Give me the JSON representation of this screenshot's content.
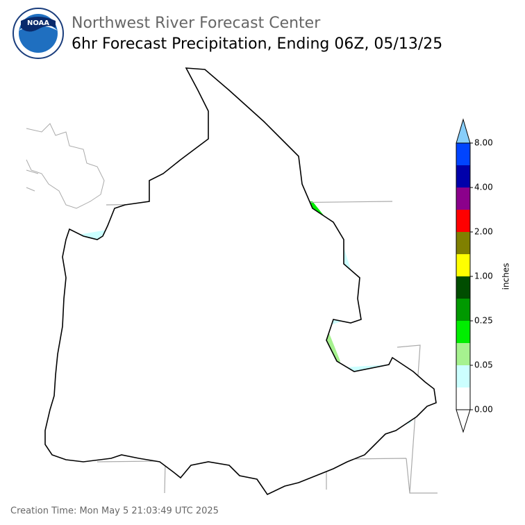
{
  "logo": {
    "text": "NOAA"
  },
  "header": {
    "title": "Northwest River Forecast Center",
    "subtitle": "6hr Forecast Precipitation, Ending 06Z, 05/13/25"
  },
  "legend": {
    "label": "inches",
    "ticks": [
      "0.00",
      "0.05",
      "0.25",
      "1.00",
      "2.00",
      "4.00",
      "8.00"
    ],
    "colors": [
      "#ffffff",
      "#ccffff",
      "#a6f28f",
      "#00ee00",
      "#009900",
      "#004d00",
      "#ffff00",
      "#808000",
      "#ff0000",
      "#8b008b",
      "#0000aa",
      "#0044ff"
    ],
    "over_color": "#87cefa"
  },
  "footer": {
    "text": "Creation Time: Mon May 5 21:03:49 UTC 2025"
  }
}
